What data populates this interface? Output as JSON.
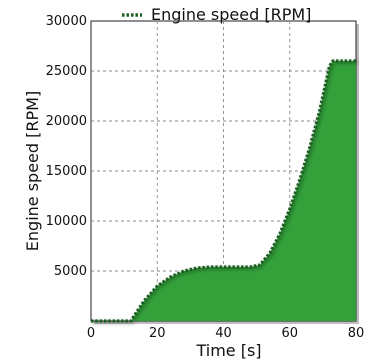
{
  "chart_data": {
    "type": "area",
    "title": "",
    "xlabel": "Time [s]",
    "ylabel": "Engine speed [RPM]",
    "xlim": [
      0,
      80
    ],
    "ylim": [
      0,
      30000
    ],
    "xticks": [
      0,
      20,
      40,
      60,
      80
    ],
    "yticks": [
      5000,
      10000,
      15000,
      20000,
      25000,
      30000
    ],
    "grid": true,
    "legend": {
      "position": "top-center"
    },
    "series": [
      {
        "name": "Engine speed [RPM]",
        "color": "#33a03a",
        "line_color": "#1e5e24",
        "x": [
          0,
          12,
          16,
          20,
          24,
          28,
          32,
          36,
          40,
          44,
          48,
          51,
          54,
          57,
          60,
          63,
          66,
          69,
          71,
          72,
          73,
          76,
          78,
          80
        ],
        "y": [
          0,
          0,
          2000,
          3500,
          4400,
          5000,
          5300,
          5400,
          5400,
          5400,
          5400,
          5600,
          6800,
          8700,
          11200,
          14100,
          17300,
          21000,
          24000,
          25500,
          26000,
          26000,
          26000,
          26000
        ]
      }
    ]
  }
}
